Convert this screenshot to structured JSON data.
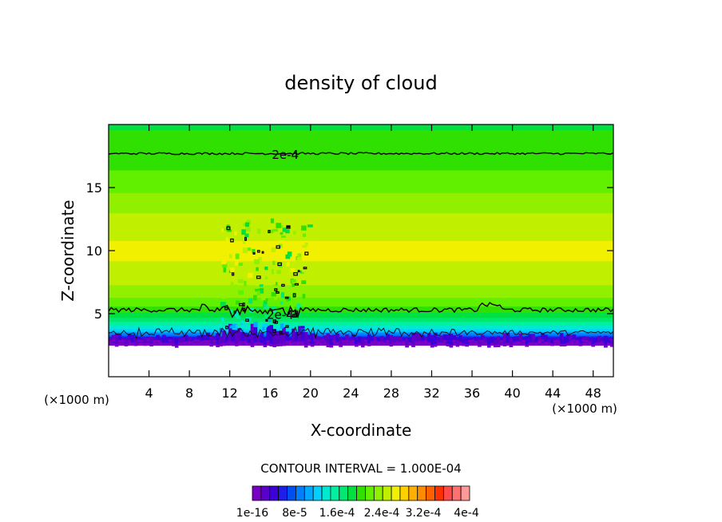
{
  "chart_data": {
    "type": "heatmap",
    "title": "density of cloud",
    "xlabel": "X-coordinate",
    "ylabel": "Z-coordinate",
    "x_unit_label": "(×1000 m)",
    "xlim": [
      0,
      50
    ],
    "ylim": [
      0,
      20
    ],
    "x_ticks": [
      4,
      8,
      12,
      16,
      20,
      24,
      28,
      32,
      36,
      40,
      44,
      48
    ],
    "y_ticks": [
      5,
      10,
      15
    ],
    "contour_interval_text": "CONTOUR INTERVAL = 1.000E-04",
    "contour_labels": [
      {
        "text": "2e-4",
        "x": 17.5,
        "z": 17.6
      },
      {
        "text": "2e-4",
        "x": 17.0,
        "z": 4.9
      }
    ],
    "contour_levels": [
      {
        "level": "2e-4",
        "z_mean": 17.7
      },
      {
        "level": "2e-4",
        "z_mean": 5.3
      },
      {
        "level": "1e-4",
        "z_mean": 3.5
      }
    ],
    "vertical_profile": [
      {
        "z": 2.5,
        "value": 1e-16
      },
      {
        "z": 3.0,
        "value": 4e-05
      },
      {
        "z": 3.5,
        "value": 0.0001
      },
      {
        "z": 4.0,
        "value": 0.00014
      },
      {
        "z": 5.0,
        "value": 0.00019
      },
      {
        "z": 6.0,
        "value": 0.00022
      },
      {
        "z": 8.0,
        "value": 0.00025
      },
      {
        "z": 10.0,
        "value": 0.00026
      },
      {
        "z": 12.0,
        "value": 0.00025
      },
      {
        "z": 14.0,
        "value": 0.00023
      },
      {
        "z": 16.0,
        "value": 0.00021
      },
      {
        "z": 18.0,
        "value": 0.0002
      },
      {
        "z": 20.0,
        "value": 0.00019
      }
    ],
    "colorbar": {
      "colors": [
        "#7a00c8",
        "#5a00c8",
        "#3c00d8",
        "#1e1ee8",
        "#0050f0",
        "#0080ff",
        "#00a8ff",
        "#00d0ff",
        "#00e8d0",
        "#00f0a0",
        "#00e870",
        "#00e040",
        "#30e000",
        "#60f000",
        "#90f000",
        "#c0f000",
        "#f0f000",
        "#ffd000",
        "#ffb000",
        "#ff8c00",
        "#ff6000",
        "#ff3000",
        "#ff4a4a",
        "#ff7070",
        "#ff9a9a"
      ],
      "tick_labels": [
        "1e-16",
        "8e-5",
        "1.6e-4",
        "2.4e-4",
        "3.2e-4",
        "4e-4"
      ]
    }
  }
}
